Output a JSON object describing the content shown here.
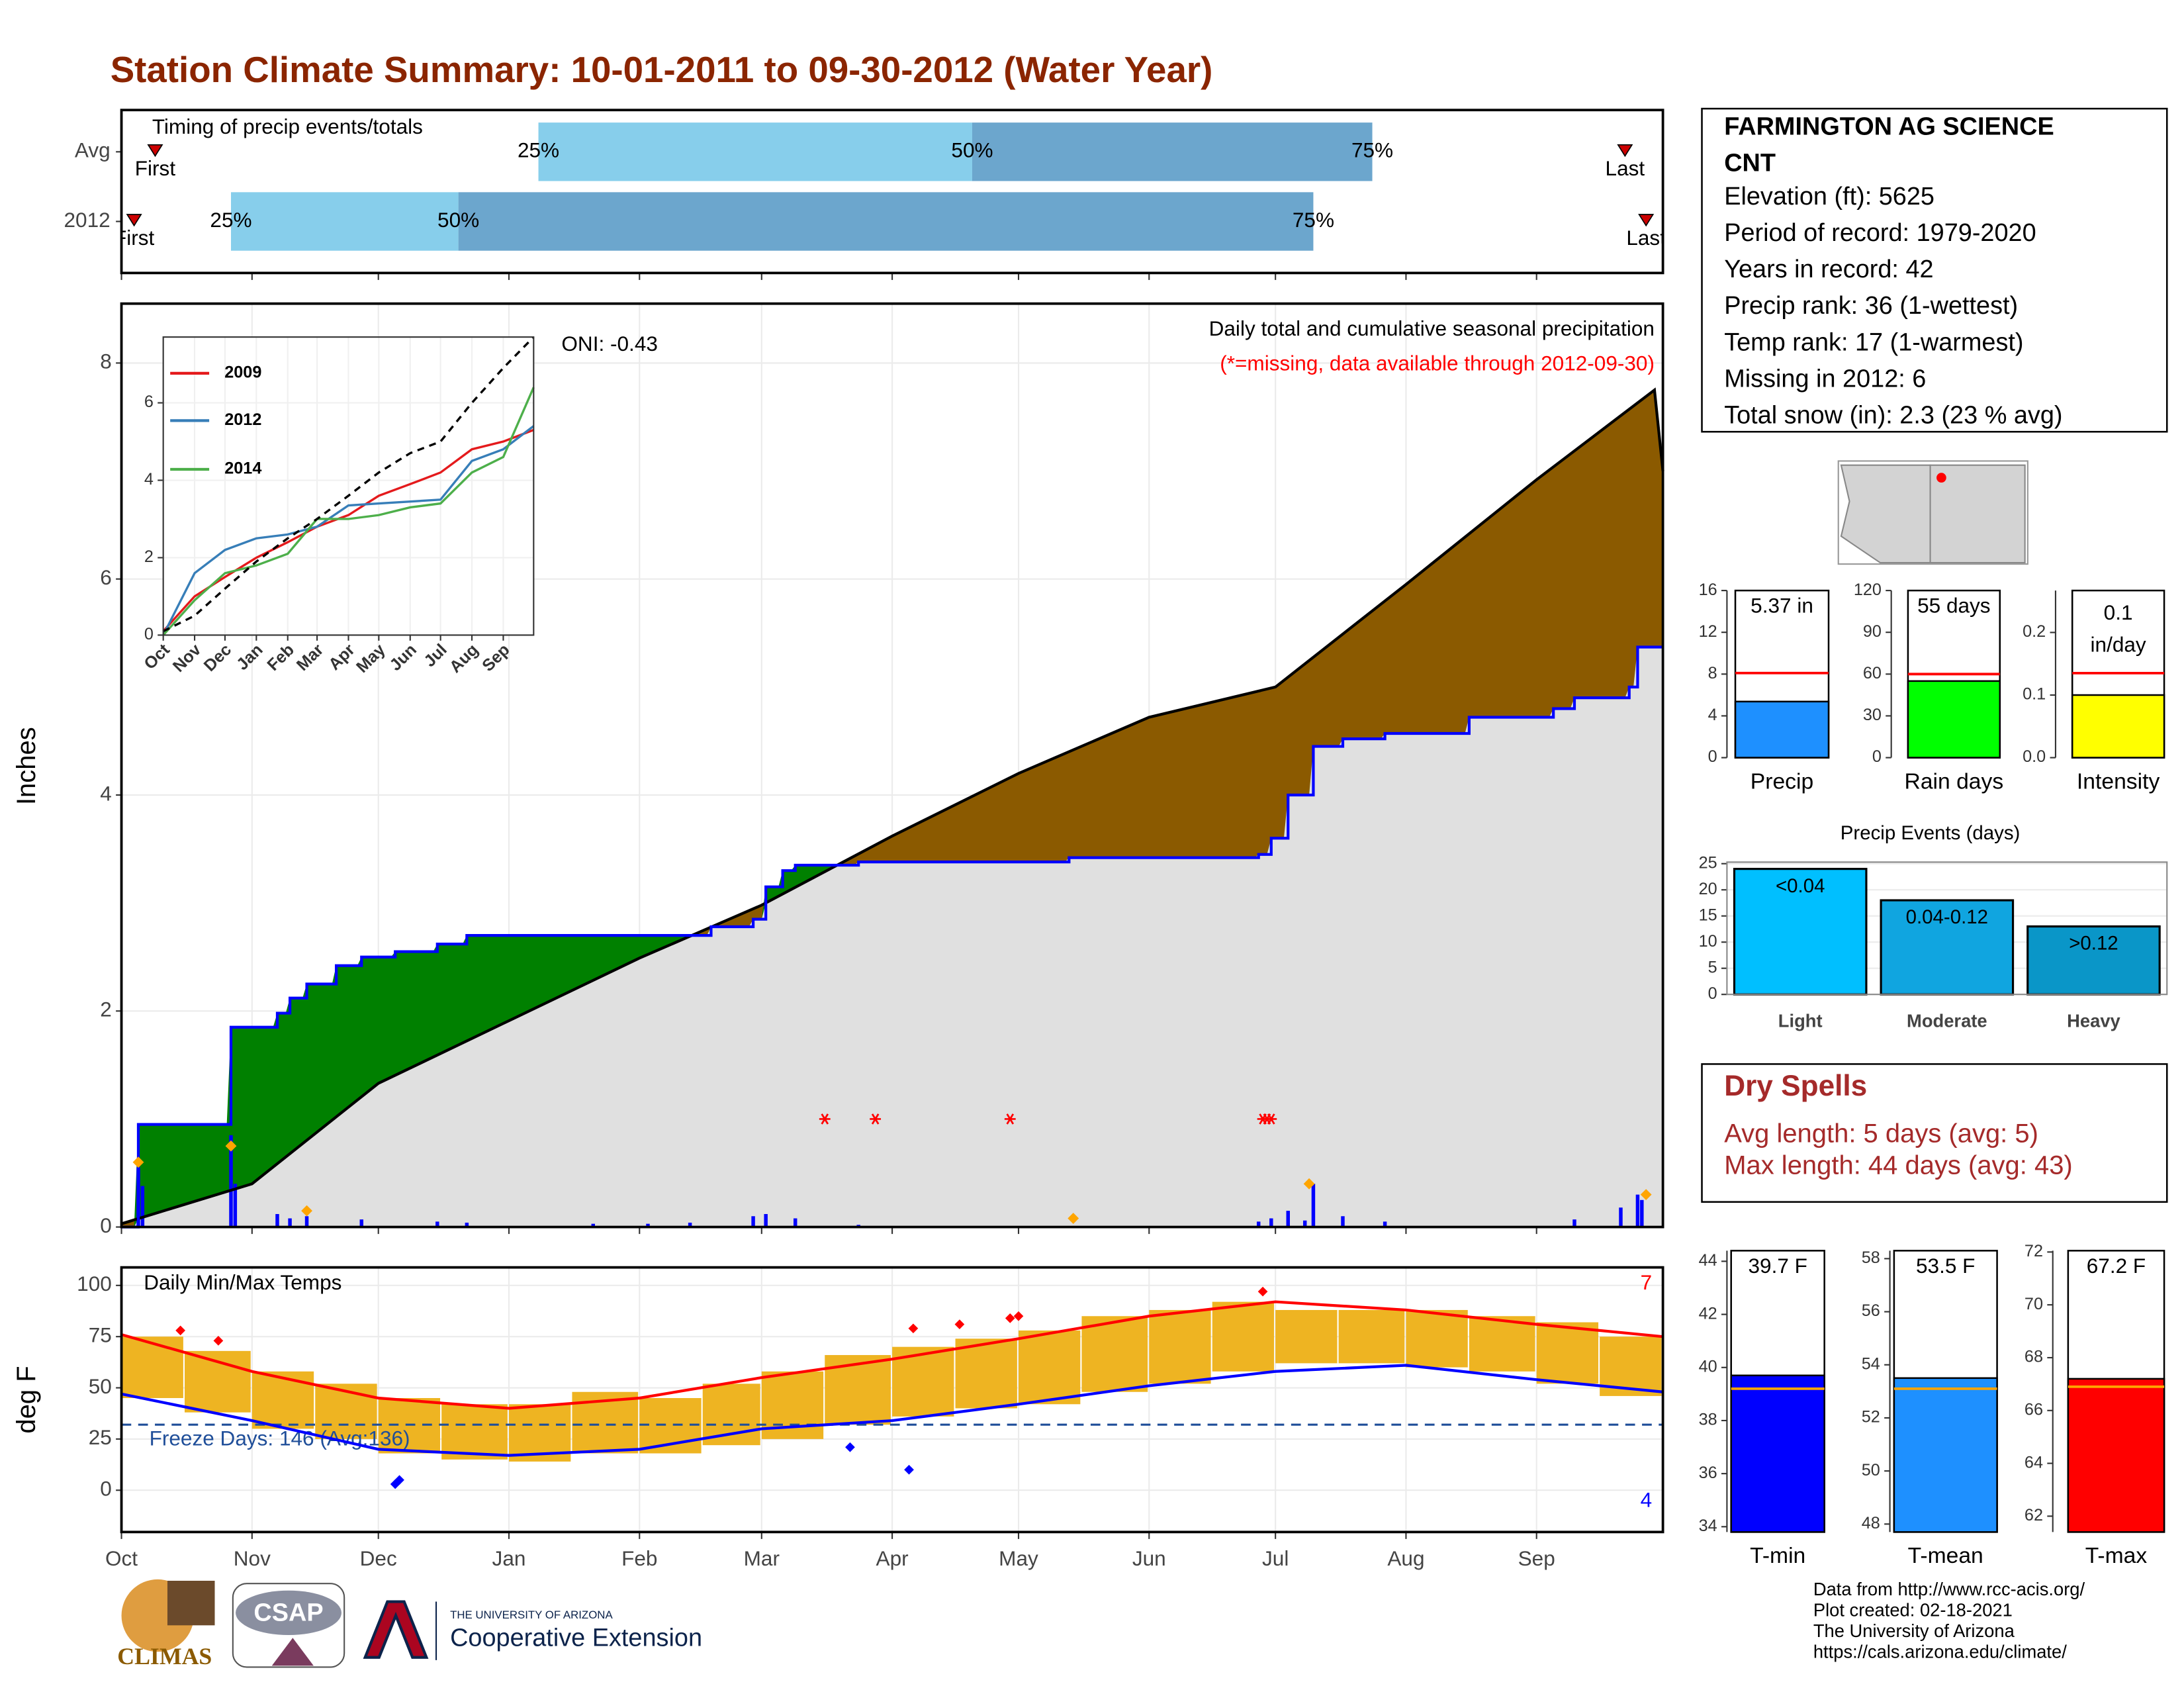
{
  "title": "Station Climate Summary: 10-01-2011 to 09-30-2012 (Water Year)",
  "chart_data": [
    {
      "type": "timing",
      "annotation": "Timing of precip events/totals",
      "xlim": [
        0,
        366
      ],
      "xticks": [
        0,
        31,
        61,
        92,
        123,
        152,
        183,
        213,
        244,
        274,
        305,
        336
      ],
      "marker_labels": {
        "first": "First",
        "last": "Last",
        "p25": "25%",
        "p50": "50%",
        "p75": "75%"
      },
      "rows": [
        {
          "name": "Avg",
          "first": 8,
          "p25": 99,
          "p50": 202,
          "p75": 297,
          "last": 357
        },
        {
          "name": "2012",
          "first": 3,
          "p25": 26,
          "p50": 80,
          "p75": 283,
          "last": 362
        }
      ],
      "colors": {
        "early": "#87ceeb",
        "late": "#6ca6cd",
        "marker": "#cc0000"
      }
    },
    {
      "type": "cumulative_precip",
      "ylabel": "Inches",
      "annotations": {
        "oni": "ONI: -0.43",
        "title": "Daily total and cumulative seasonal precipitation",
        "note": "(*=missing, data available through 2012-09-30)"
      },
      "xlim": [
        0,
        366
      ],
      "ylim": [
        0,
        8.55
      ],
      "yticks": [
        0,
        2,
        4,
        6,
        8
      ],
      "xticks": [
        0,
        31,
        61,
        92,
        123,
        152,
        183,
        213,
        244,
        274,
        305,
        336
      ],
      "grid": true,
      "cumulative_2012": {
        "x": [
          0,
          4,
          26,
          37,
          40,
          44,
          51,
          57,
          65,
          75,
          82,
          140,
          150,
          153,
          157,
          160,
          175,
          225,
          270,
          273,
          277,
          283,
          290,
          300,
          320,
          340,
          345,
          358,
          360,
          366
        ],
        "values": [
          0,
          0.95,
          1.85,
          1.98,
          2.12,
          2.25,
          2.42,
          2.5,
          2.55,
          2.62,
          2.7,
          2.78,
          2.85,
          3.15,
          3.3,
          3.35,
          3.38,
          3.42,
          3.45,
          3.6,
          4.0,
          4.45,
          4.52,
          4.57,
          4.72,
          4.8,
          4.9,
          5.0,
          5.37,
          5.37
        ]
      },
      "cumulative_avg": {
        "x": [
          0,
          31,
          61,
          92,
          123,
          152,
          183,
          213,
          244,
          274,
          305,
          336,
          364,
          366
        ],
        "values": [
          0.03,
          0.4,
          1.33,
          1.91,
          2.49,
          2.98,
          3.62,
          4.2,
          4.72,
          5.0,
          5.95,
          6.92,
          7.75,
          7.0
        ]
      },
      "daily": {
        "x": [
          4,
          5,
          26,
          27,
          37,
          40,
          44,
          57,
          75,
          82,
          112,
          125,
          135,
          150,
          153,
          160,
          175,
          270,
          273,
          277,
          281,
          283,
          290,
          300,
          345,
          356,
          360,
          361
        ],
        "values": [
          0.55,
          0.38,
          0.85,
          0.4,
          0.12,
          0.08,
          0.1,
          0.07,
          0.05,
          0.04,
          0.03,
          0.03,
          0.04,
          0.1,
          0.12,
          0.08,
          0.02,
          0.05,
          0.08,
          0.15,
          0.06,
          0.4,
          0.1,
          0.05,
          0.07,
          0.18,
          0.3,
          0.25
        ]
      },
      "missing": {
        "x": [
          167,
          179,
          211,
          271,
          272,
          273
        ],
        "values": [
          1,
          1,
          1,
          1,
          1,
          1
        ]
      },
      "snow": {
        "x": [
          4,
          26,
          44,
          226,
          282,
          362
        ],
        "values": [
          0.6,
          0.75,
          0.15,
          0.08,
          0.4,
          0.3
        ]
      },
      "colors": {
        "above": "#008000",
        "below": "#8b5a00",
        "base": "#e0e0e0",
        "year": "#0000ff",
        "avg": "#000000",
        "daily": "#0000ff",
        "missing": "#ff0000",
        "snow": "#ffa500"
      }
    },
    {
      "type": "line",
      "xlim": [
        0,
        366
      ],
      "ylim": [
        0,
        7.7
      ],
      "yticks": [
        0,
        2,
        4,
        6
      ],
      "xticks": [
        {
          "value": 0,
          "label": "Oct"
        },
        {
          "value": 31,
          "label": "Nov"
        },
        {
          "value": 61,
          "label": "Dec"
        },
        {
          "value": 92,
          "label": "Jan"
        },
        {
          "value": 123,
          "label": "Feb"
        },
        {
          "value": 152,
          "label": "Mar"
        },
        {
          "value": 183,
          "label": "Apr"
        },
        {
          "value": 213,
          "label": "May"
        },
        {
          "value": 244,
          "label": "Jun"
        },
        {
          "value": 274,
          "label": "Jul"
        },
        {
          "value": 305,
          "label": "Aug"
        },
        {
          "value": 336,
          "label": "Sep"
        }
      ],
      "x": [
        0,
        31,
        61,
        92,
        123,
        152,
        183,
        213,
        244,
        274,
        305,
        336,
        366
      ],
      "series": [
        {
          "name": "2009",
          "color": "#e41a1c",
          "values": [
            0.1,
            1.0,
            1.5,
            2.0,
            2.4,
            2.8,
            3.1,
            3.6,
            3.9,
            4.2,
            4.8,
            5.0,
            5.3
          ]
        },
        {
          "name": "2012",
          "color": "#377eb8",
          "values": [
            0,
            1.6,
            2.2,
            2.5,
            2.6,
            2.8,
            3.35,
            3.4,
            3.45,
            3.5,
            4.5,
            4.8,
            5.4
          ]
        },
        {
          "name": "2014",
          "color": "#4daf4a",
          "values": [
            0,
            0.9,
            1.6,
            1.8,
            2.1,
            3.0,
            3.0,
            3.1,
            3.3,
            3.4,
            4.2,
            4.6,
            6.4
          ]
        }
      ],
      "average": {
        "color": "#000000",
        "values": [
          0.1,
          0.5,
          1.2,
          1.9,
          2.5,
          3.0,
          3.6,
          4.2,
          4.7,
          5.0,
          6.0,
          6.9,
          7.7
        ]
      }
    },
    {
      "type": "temperature",
      "annotation": "Daily Min/Max Temps",
      "ylabel": "deg F",
      "xlim": [
        0,
        366
      ],
      "ylim": [
        -20.4,
        108.8
      ],
      "yticks": [
        0,
        25,
        50,
        75,
        100
      ],
      "xticks": [
        {
          "value": 0,
          "label": "Oct"
        },
        {
          "value": 31,
          "label": "Nov"
        },
        {
          "value": 61,
          "label": "Dec"
        },
        {
          "value": 92,
          "label": "Jan"
        },
        {
          "value": 123,
          "label": "Feb"
        },
        {
          "value": 152,
          "label": "Mar"
        },
        {
          "value": 183,
          "label": "Apr"
        },
        {
          "value": 213,
          "label": "May"
        },
        {
          "value": 244,
          "label": "Jun"
        },
        {
          "value": 274,
          "label": "Jul"
        },
        {
          "value": 305,
          "label": "Aug"
        },
        {
          "value": 336,
          "label": "Sep"
        }
      ],
      "bars": {
        "color": "#eeb422",
        "x": [
          0,
          15,
          31,
          46,
          61,
          76,
          92,
          107,
          123,
          138,
          152,
          167,
          183,
          198,
          213,
          228,
          244,
          259,
          274,
          289,
          305,
          320,
          336,
          351
        ],
        "low": [
          45,
          38,
          30,
          25,
          18,
          15,
          14,
          18,
          18,
          22,
          25,
          32,
          36,
          40,
          42,
          48,
          52,
          58,
          62,
          62,
          60,
          58,
          52,
          46
        ],
        "high": [
          75,
          68,
          58,
          52,
          45,
          42,
          42,
          48,
          45,
          52,
          58,
          66,
          70,
          74,
          78,
          85,
          88,
          92,
          88,
          88,
          88,
          85,
          82,
          75
        ]
      },
      "normal_high": {
        "color": "#ff0000",
        "x": [
          0,
          31,
          61,
          92,
          123,
          152,
          183,
          213,
          244,
          274,
          305,
          336,
          366
        ],
        "values": [
          76,
          58,
          45,
          40,
          45,
          55,
          64,
          74,
          85,
          92,
          88,
          81,
          75
        ]
      },
      "normal_low": {
        "color": "#0000ff",
        "x": [
          0,
          31,
          61,
          92,
          123,
          152,
          183,
          213,
          244,
          274,
          305,
          336,
          366
        ],
        "values": [
          47,
          34,
          20,
          17,
          20,
          30,
          34,
          42,
          51,
          58,
          61,
          54,
          48
        ]
      },
      "freeze": {
        "value": 32,
        "label": "Freeze Days: 146 (Avg:136)",
        "color": "#1f4e99"
      },
      "record_highs": {
        "count": 7,
        "color": "#ff0000",
        "x": [
          14,
          23,
          188,
          199,
          211,
          213,
          271
        ],
        "values": [
          78,
          73,
          79,
          81,
          84,
          85,
          97
        ]
      },
      "record_lows": {
        "count": 4,
        "color": "#0000ff",
        "x": [
          65,
          66,
          173,
          187
        ],
        "values": [
          3,
          5,
          21,
          10
        ]
      }
    },
    {
      "type": "summary_bar",
      "categories": [
        "Precip"
      ],
      "values": [
        5.37
      ],
      "value_labels": [
        [
          "5.37 in"
        ]
      ],
      "average": 8.1,
      "ylim": [
        0,
        16
      ],
      "yticks": [
        0,
        4,
        8,
        12,
        16
      ],
      "color": "#1e90ff",
      "average_color": "#ff0000"
    },
    {
      "type": "summary_bar",
      "categories": [
        "Rain days"
      ],
      "values": [
        55
      ],
      "value_labels": [
        [
          "55 days"
        ]
      ],
      "average": 60,
      "ylim": [
        0,
        120
      ],
      "yticks": [
        0,
        30,
        60,
        90,
        120
      ],
      "color": "#00ff00",
      "average_color": "#ff0000"
    },
    {
      "type": "summary_bar",
      "categories": [
        "Intensity"
      ],
      "values": [
        0.1
      ],
      "value_labels": [
        [
          "0.1",
          "in/day"
        ]
      ],
      "average": 0.135,
      "ylim": [
        0,
        0.267
      ],
      "yticks": [
        {
          "value": 0,
          "label": "0.0"
        },
        0.1,
        0.2
      ],
      "color": "#ffff00",
      "average_color": "#ff0000"
    },
    {
      "type": "bar",
      "title": "Precip Events (days)",
      "categories": [
        "Light",
        "Moderate",
        "Heavy"
      ],
      "values": [
        24,
        18,
        13
      ],
      "bin_labels": [
        "<0.04",
        "0.04-0.12",
        ">0.12"
      ],
      "colors": [
        "#00bfff",
        "#10a5e0",
        "#0a96c8"
      ],
      "ylim": [
        0,
        25.3
      ],
      "yticks": [
        0,
        5,
        10,
        15,
        20,
        25
      ],
      "grid": true
    },
    {
      "type": "summary_bar",
      "categories": [
        "T-min"
      ],
      "values": [
        39.7
      ],
      "value_labels": [
        [
          "39.7 F"
        ]
      ],
      "average": 39.2,
      "ylim": [
        33.8,
        44.4
      ],
      "yticks": [
        34,
        36,
        38,
        40,
        42,
        44
      ],
      "color": "#0000ff",
      "average_color": "#ffa500"
    },
    {
      "type": "summary_bar",
      "categories": [
        "T-mean"
      ],
      "values": [
        53.5
      ],
      "value_labels": [
        [
          "53.5 F"
        ]
      ],
      "average": 53.1,
      "ylim": [
        47.7,
        58.3
      ],
      "yticks": [
        48,
        50,
        52,
        54,
        56,
        58
      ],
      "color": "#1e90ff",
      "average_color": "#ffa500"
    },
    {
      "type": "summary_bar",
      "categories": [
        "T-max"
      ],
      "values": [
        67.2
      ],
      "value_labels": [
        [
          "67.2 F"
        ]
      ],
      "average": 66.9,
      "ylim": [
        61.4,
        72.05
      ],
      "yticks": [
        62,
        64,
        66,
        68,
        70,
        72
      ],
      "color": "#ff0000",
      "average_color": "#ffa500"
    }
  ],
  "station": {
    "name": "FARMINGTON AG SCIENCE",
    "name_cont": "CNT",
    "lines": [
      "Elevation (ft): 5625",
      "Period of record: 1979-2020",
      "Years in record: 42",
      "Precip rank: 36 (1-wettest)",
      "Temp rank: 17 (1-warmest)",
      "Missing in 2012: 6",
      "Total snow (in): 2.3 (23 % avg)"
    ]
  },
  "dry_spells": {
    "title": "Dry Spells",
    "lines": [
      "Avg length: 5 days (avg: 5)",
      "Max length: 44 days (avg: 43)"
    ]
  },
  "footer": {
    "logos": [
      "CLIMAS",
      "CSAP",
      "THE UNIVERSITY OF ARIZONA",
      "Cooperative Extension"
    ],
    "credits": [
      "Data from http://www.rcc-acis.org/",
      "Plot created: 02-18-2021",
      "The University of Arizona",
      "https://cals.arizona.edu/climate/"
    ]
  }
}
